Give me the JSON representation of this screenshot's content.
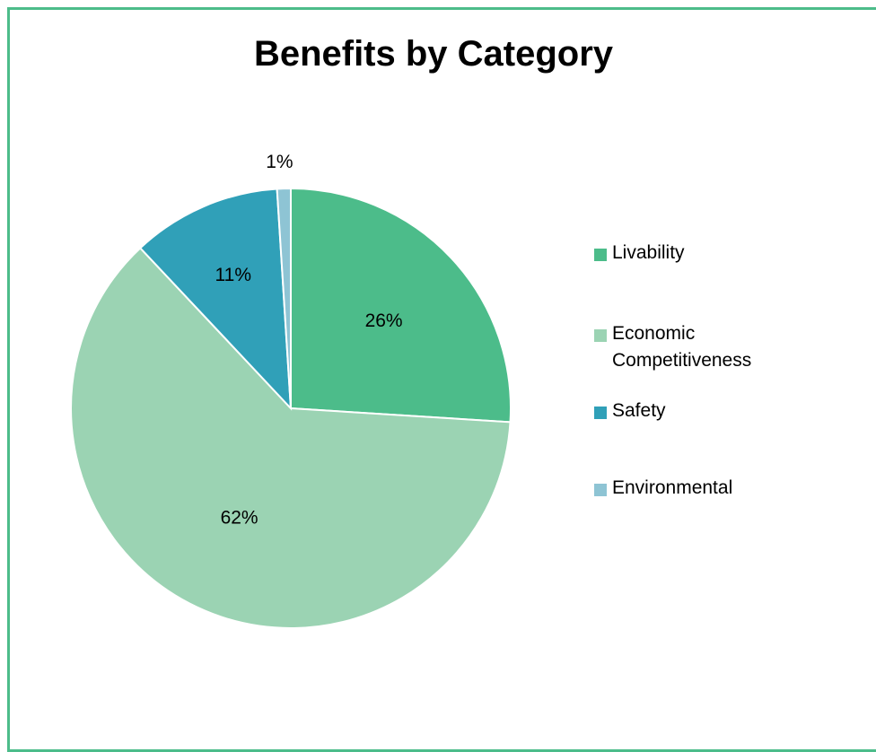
{
  "chart_data": {
    "type": "pie",
    "title": "Benefits by Category",
    "legend_position": "right",
    "slices": [
      {
        "name": "Livability",
        "value": 26,
        "label": "26%",
        "color": "#4cbc8a"
      },
      {
        "name": "Economic Competitiveness",
        "value": 62,
        "label": "62%",
        "color": "#9bd3b3"
      },
      {
        "name": "Safety",
        "value": 11,
        "label": "11%",
        "color": "#30a0b8"
      },
      {
        "name": "Environmental",
        "value": 1,
        "label": "1%",
        "color": "#8ec4d4"
      }
    ]
  },
  "colors": {
    "border": "#4cbc8a",
    "background": "#ffffff"
  }
}
